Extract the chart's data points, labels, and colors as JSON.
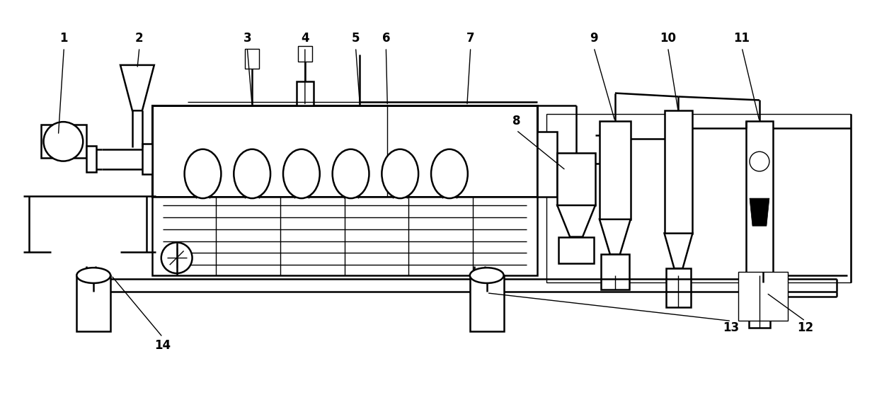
{
  "bg_color": "#ffffff",
  "line_color": "#000000",
  "lw": 1.8,
  "lw_thin": 1.0,
  "lw_thick": 2.2,
  "label_fontsize": 12,
  "fig_width": 12.39,
  "fig_height": 5.82
}
